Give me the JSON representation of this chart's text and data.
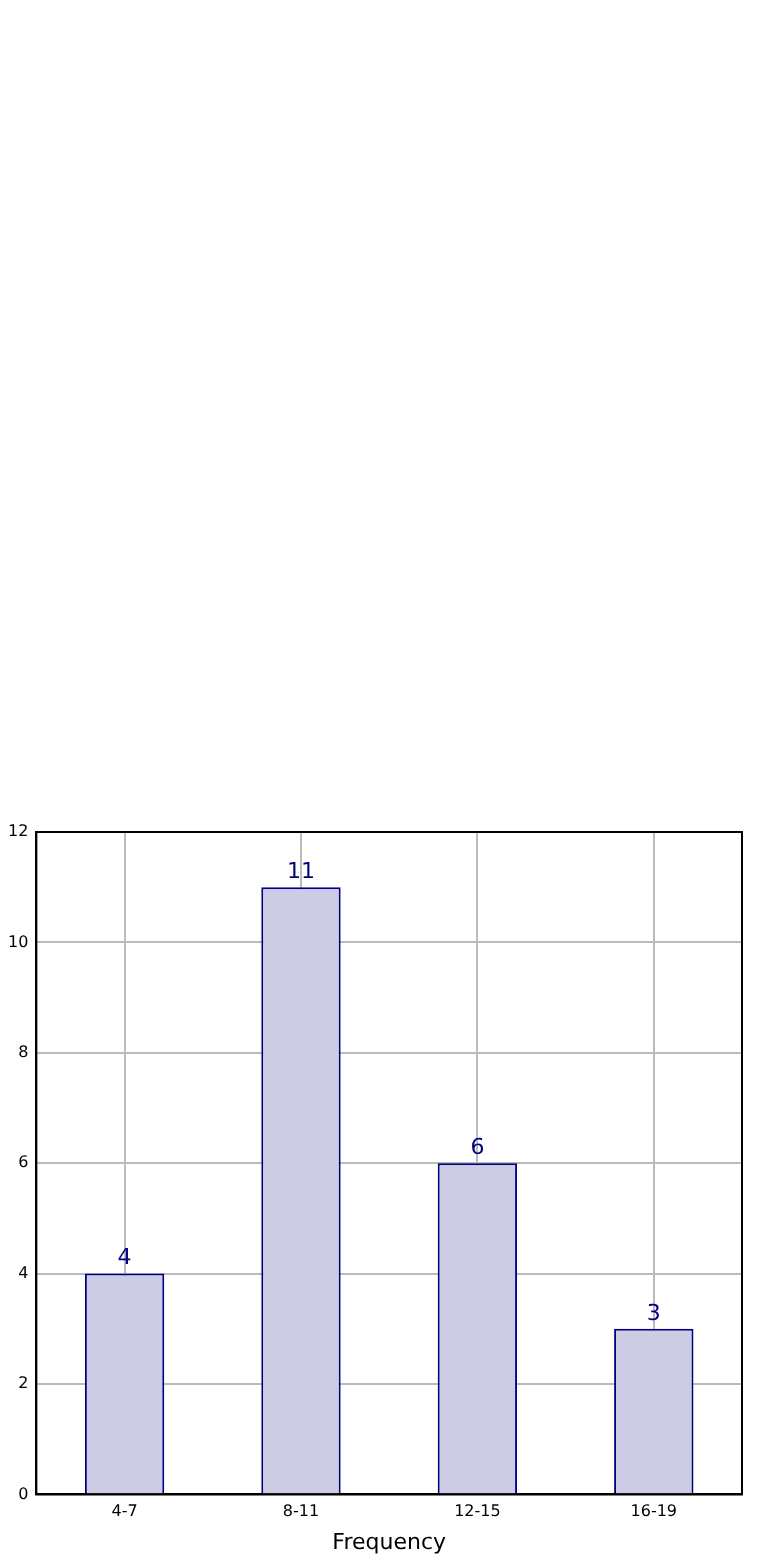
{
  "chart_data": {
    "type": "bar",
    "xlabel": "Frequency",
    "categories": [
      "4-7",
      "8-11",
      "12-15",
      "16-19"
    ],
    "values": [
      4,
      11,
      6,
      3
    ],
    "color": "#ccccE5",
    "ylim": [
      0,
      12
    ],
    "yticks": [
      0,
      2,
      4,
      6,
      8,
      10,
      12
    ],
    "grid": true,
    "data_labels": true,
    "legend": false
  }
}
